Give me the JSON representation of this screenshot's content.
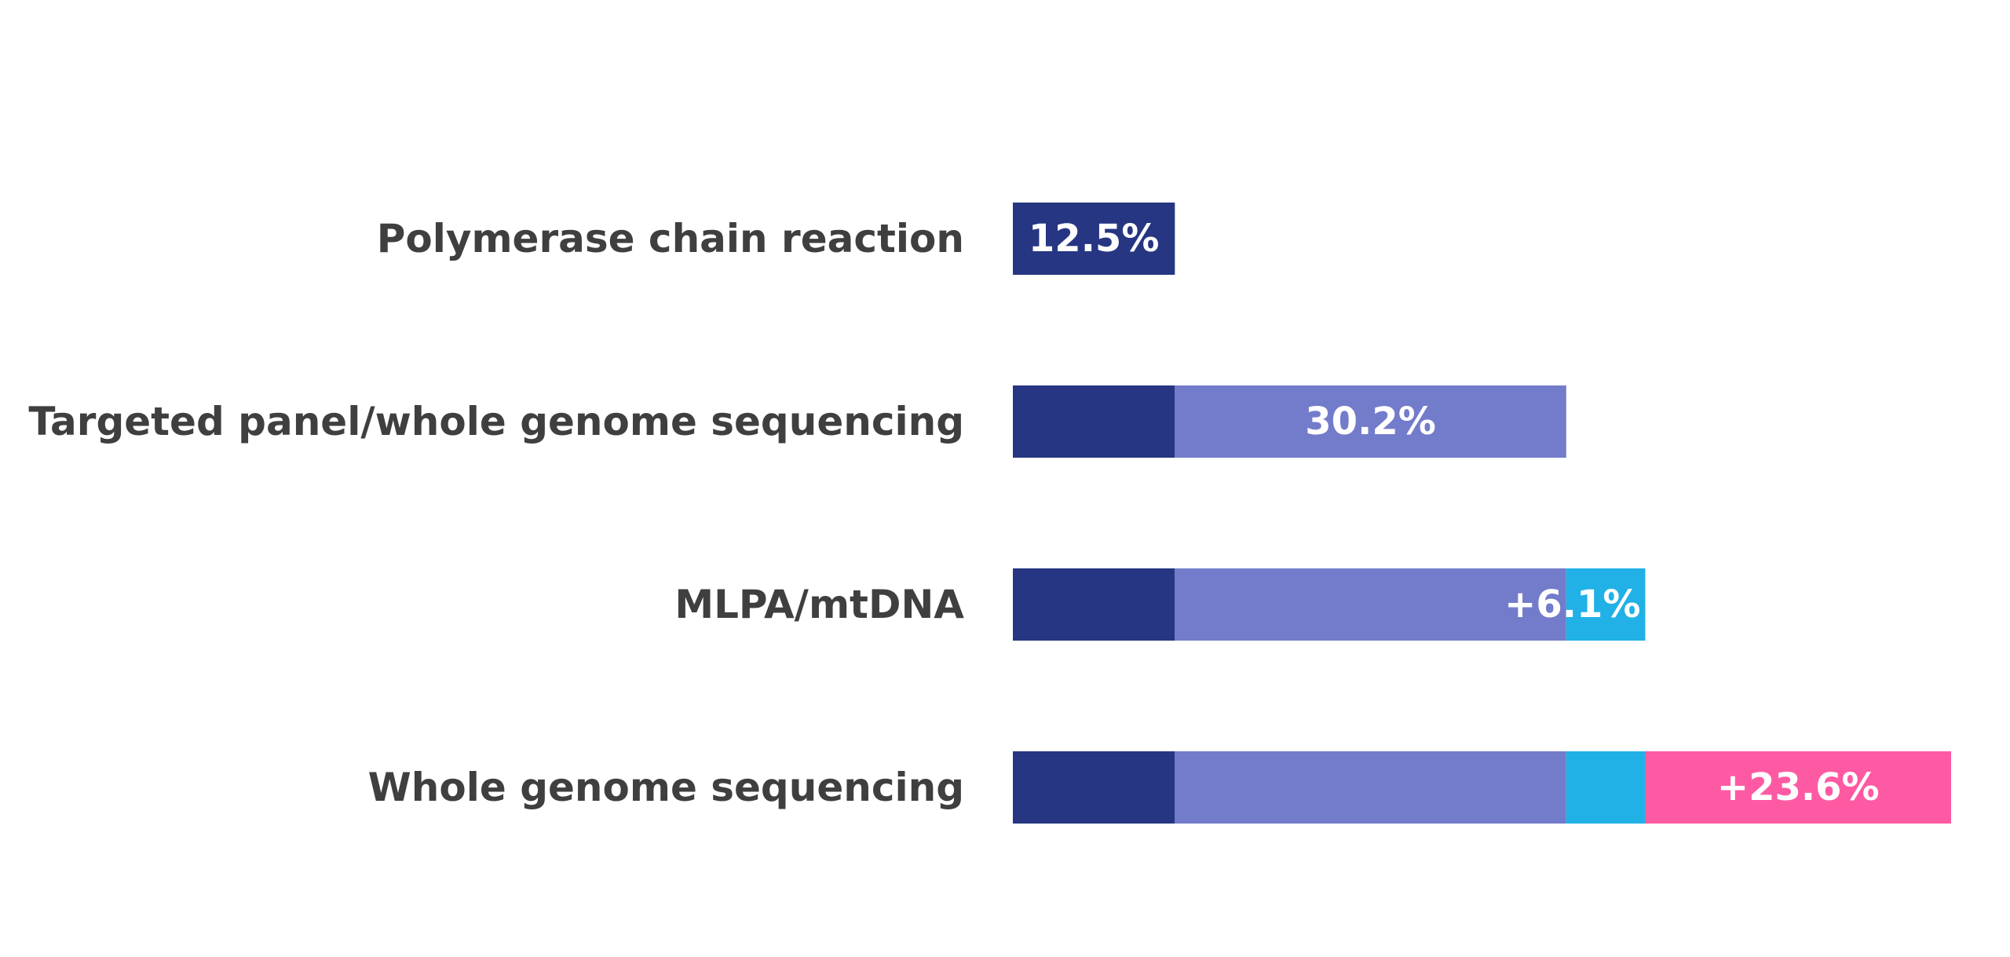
{
  "chart_data": {
    "type": "bar",
    "orientation": "horizontal",
    "stacked": true,
    "title": "",
    "xlabel": "",
    "ylabel": "",
    "grid": false,
    "legend": "none",
    "xlim": [
      0,
      72.4
    ],
    "categories": [
      "Polymerase chain reaction",
      "Targeted panel/whole genome sequencing",
      "MLPA/mtDNA",
      "Whole genome sequencing"
    ],
    "series": [
      {
        "color": "#263682",
        "values": [
          12.5,
          12.5,
          12.5,
          12.5
        ]
      },
      {
        "color": "#737ccb",
        "values": [
          0,
          30.2,
          30.2,
          30.2
        ]
      },
      {
        "color": "#21b1e6",
        "values": [
          0,
          0,
          6.1,
          6.1
        ]
      },
      {
        "color": "#fe5aa3",
        "values": [
          0,
          0,
          0,
          23.6
        ]
      }
    ],
    "data_labels": [
      {
        "category": "Polymerase chain reaction",
        "text": "12.5%"
      },
      {
        "category": "Targeted panel/whole genome sequencing",
        "text": "30.2%"
      },
      {
        "category": "MLPA/mtDNA",
        "text": "+6.1%"
      },
      {
        "category": "Whole genome sequencing",
        "text": "+23.6%"
      }
    ]
  }
}
